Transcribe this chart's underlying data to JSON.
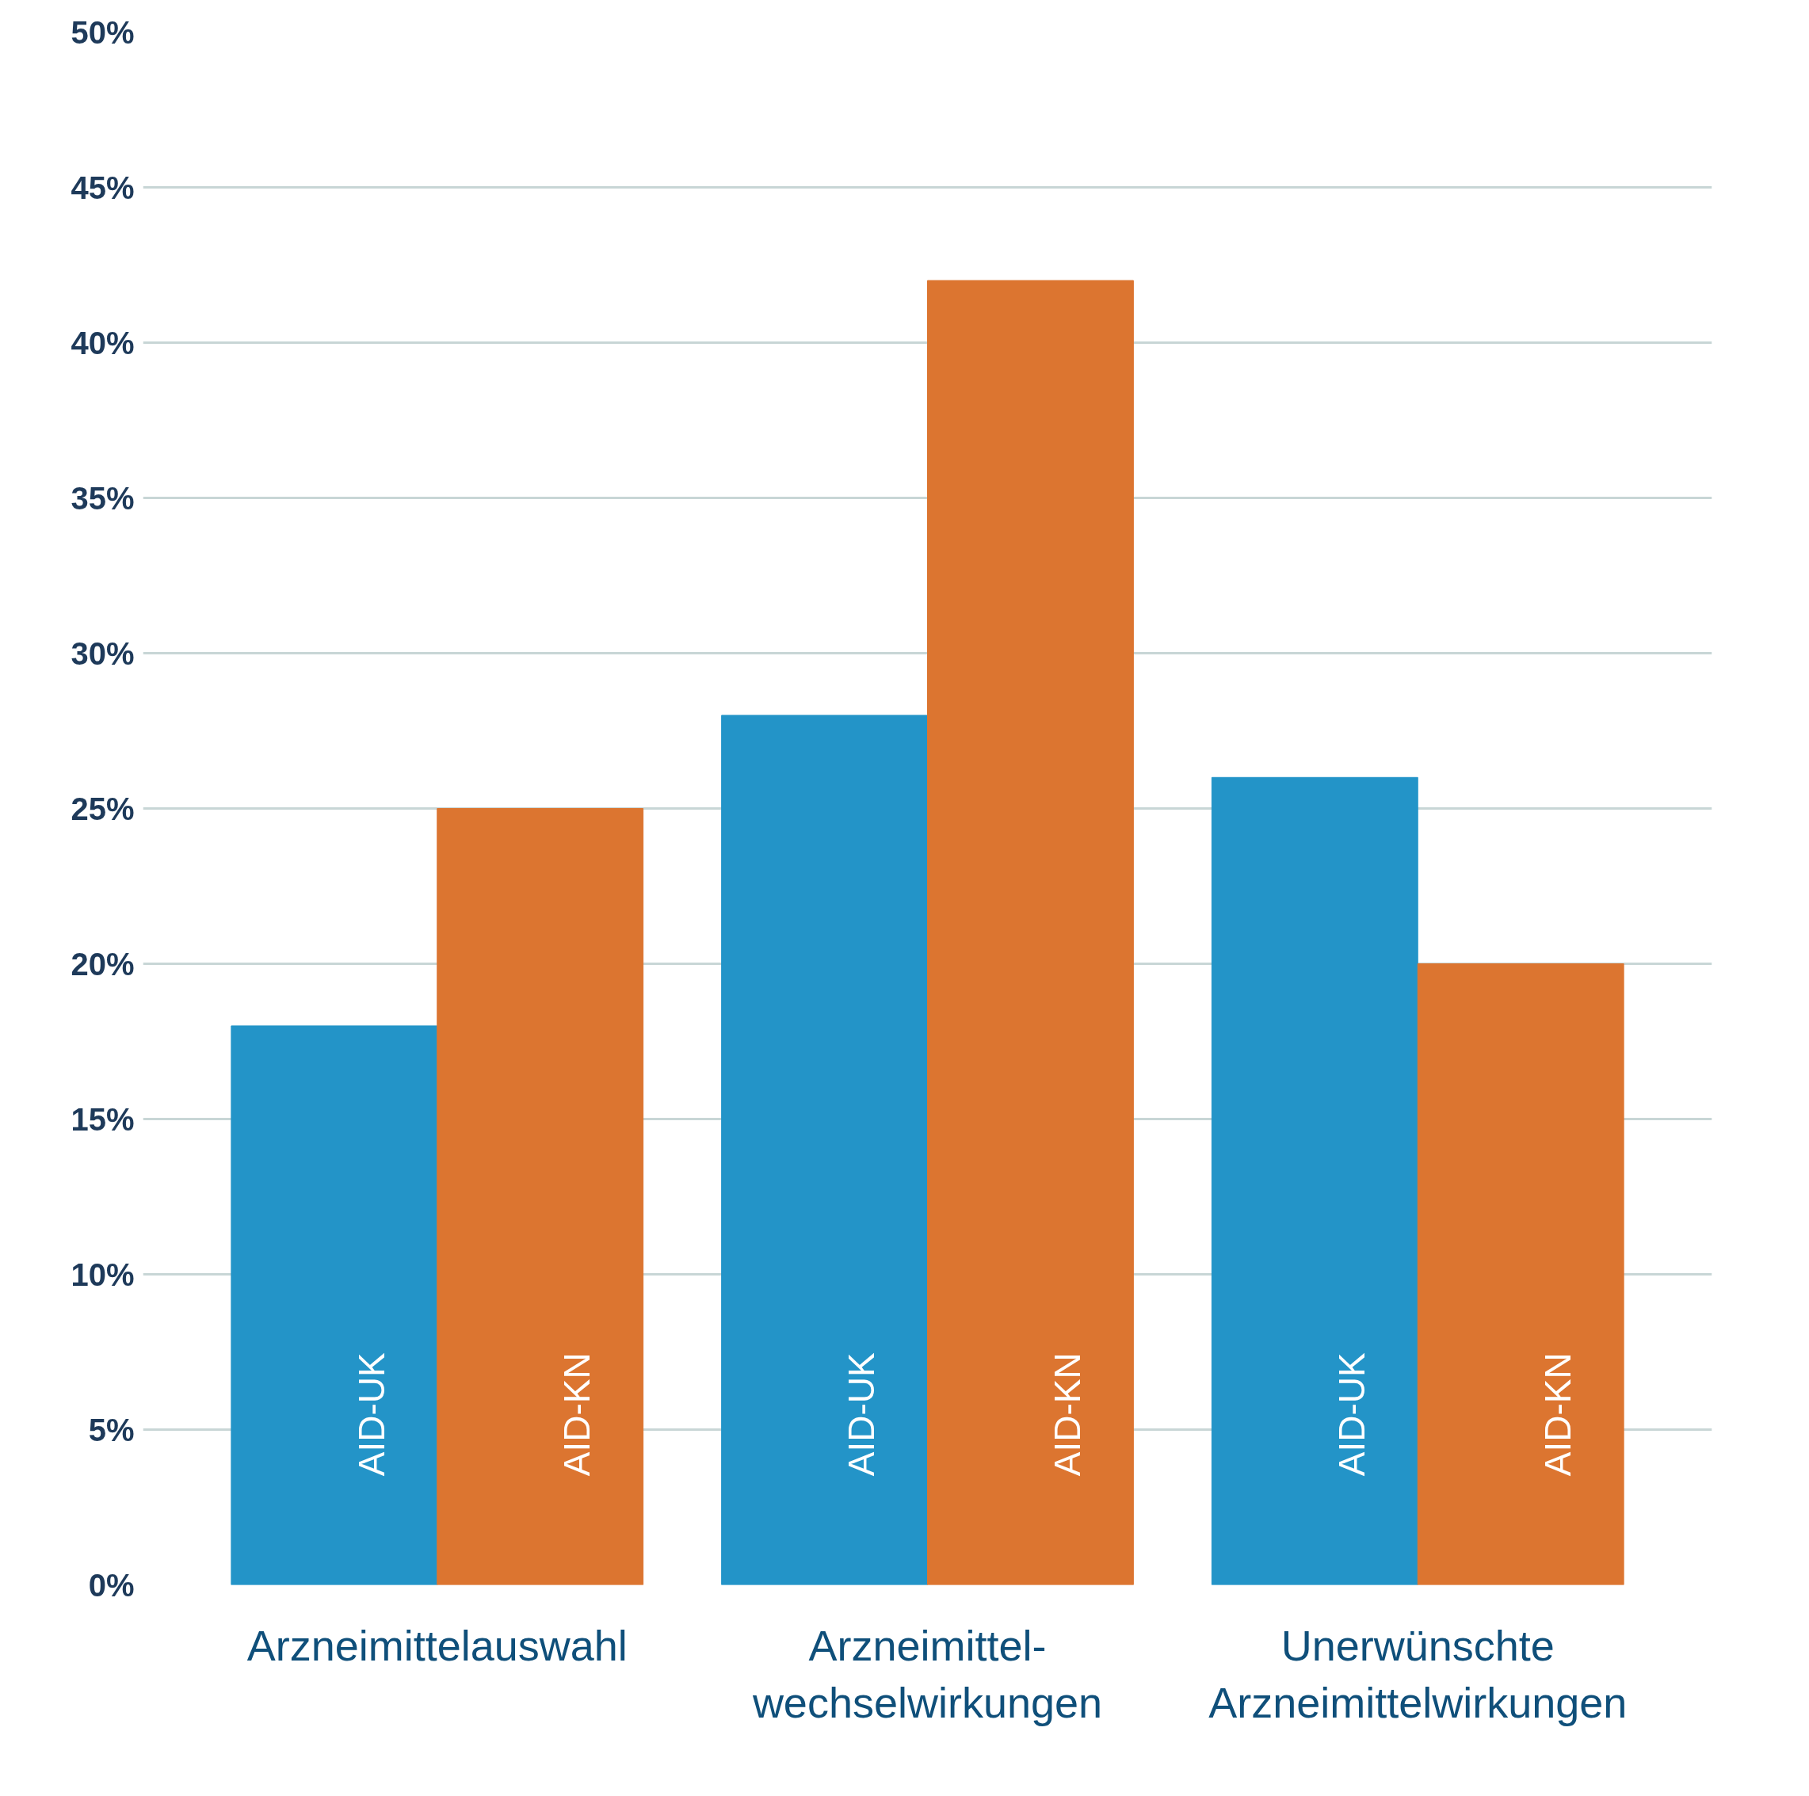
{
  "chart_data": {
    "type": "bar",
    "categories": [
      "Arzneimittelauswahl",
      "Arzneimittel-\nwechselwirkungen",
      "Unerwünschte\nArzneimittelwirkungen"
    ],
    "series": [
      {
        "name": "AID-UK",
        "color": "#2394c8",
        "values": [
          18,
          28,
          26
        ]
      },
      {
        "name": "AID-KN",
        "color": "#dc7530",
        "values": [
          25,
          42,
          20
        ]
      }
    ],
    "ylim": [
      0,
      50
    ],
    "yticks": [
      {
        "value": 0,
        "label": "0%"
      },
      {
        "value": 5,
        "label": "5%"
      },
      {
        "value": 10,
        "label": "10%"
      },
      {
        "value": 15,
        "label": "15%"
      },
      {
        "value": 20,
        "label": "20%"
      },
      {
        "value": 25,
        "label": "25%"
      },
      {
        "value": 30,
        "label": "30%"
      },
      {
        "value": 35,
        "label": "35%"
      },
      {
        "value": 40,
        "label": "40%"
      },
      {
        "value": 45,
        "label": "45%"
      },
      {
        "value": 50,
        "label": "50%"
      }
    ],
    "grid": "y"
  }
}
